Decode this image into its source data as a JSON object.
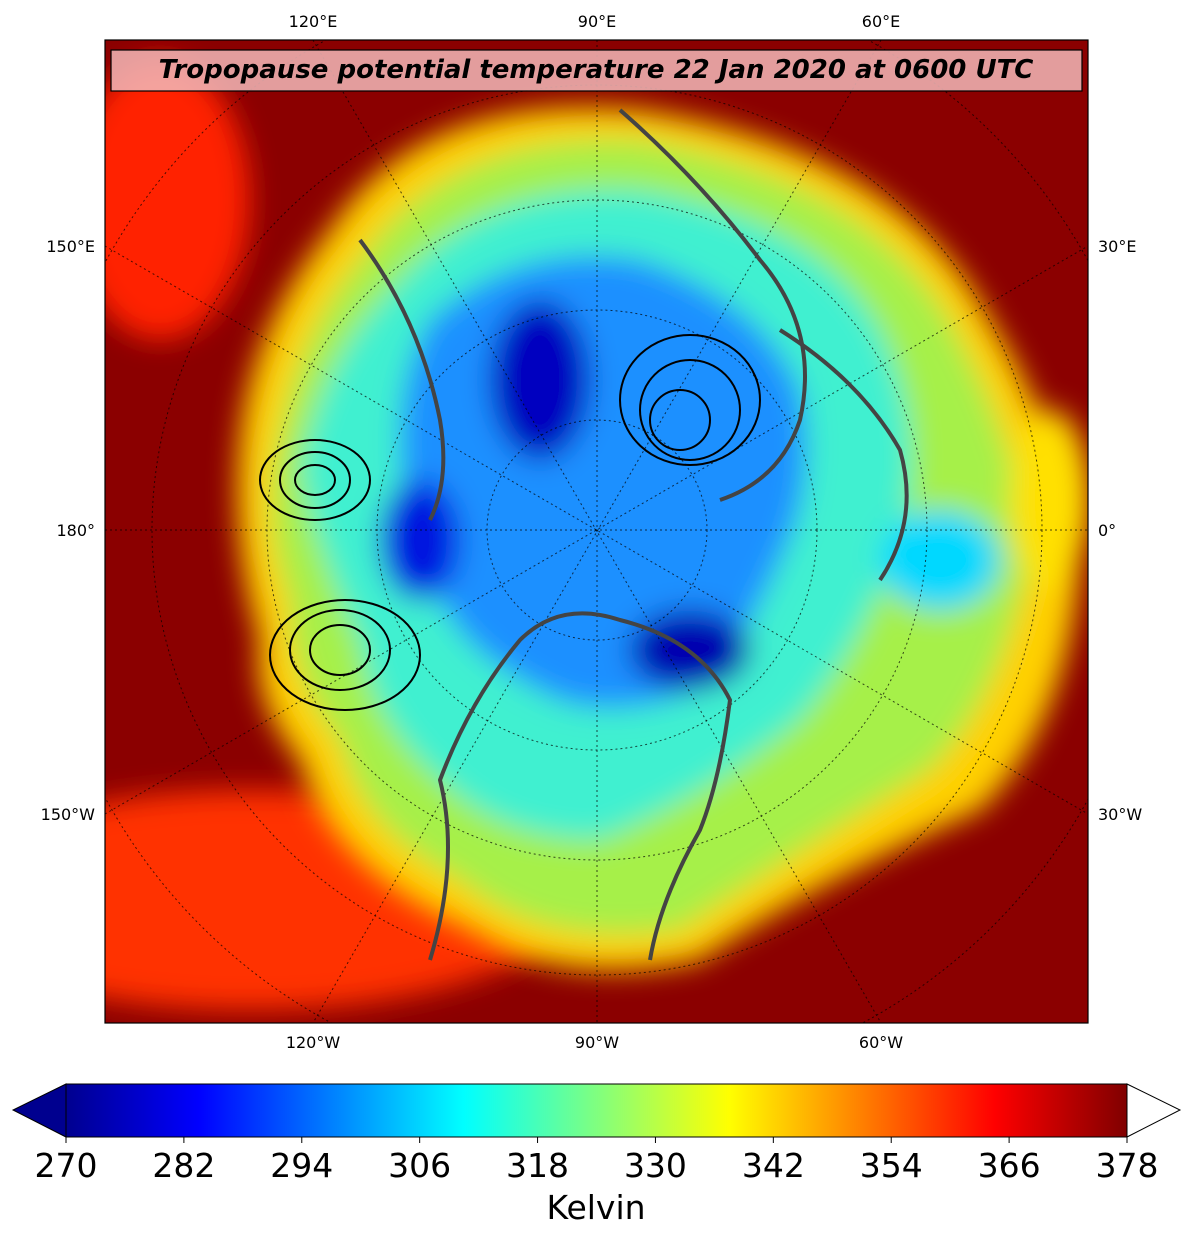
{
  "title": "Tropopause potential temperature 22 Jan 2020 at 0600 UTC",
  "map": {
    "top_labels": [
      "120°E",
      "90°E",
      "60°E"
    ],
    "bottom_labels": [
      "120°W",
      "90°W",
      "60°W"
    ],
    "left_labels": [
      "150°E",
      "180°",
      "150°W"
    ],
    "right_labels": [
      "30°E",
      "0°",
      "30°W"
    ]
  },
  "colorbar": {
    "label": "Kelvin",
    "lim": [
      270,
      378
    ],
    "ticks": [
      270,
      282,
      294,
      306,
      318,
      330,
      342,
      354,
      366,
      378
    ]
  }
}
